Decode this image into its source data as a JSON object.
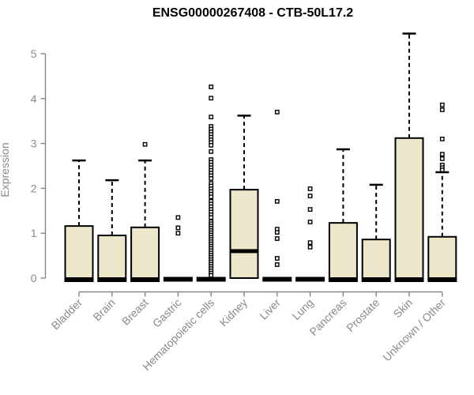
{
  "chart_data": {
    "type": "boxplot",
    "title": "ENSG00000267408 - CTB-50L17.2",
    "ylabel": "Expression",
    "xlabel": "",
    "ylim": [
      0,
      5.5
    ],
    "yticks": [
      0,
      1,
      2,
      3,
      4,
      5
    ],
    "grid": false,
    "legend": null,
    "colors": {
      "box_fill": "#ECE7CB",
      "box_stroke": "#000000",
      "median": "#000000",
      "whisker": "#000000",
      "outlier_stroke": "#000000",
      "outlier_fill": "#ffffff",
      "axis_line": "#878787",
      "tick_label": "#8a8a8a",
      "title": "#000000"
    },
    "categories": [
      "Bladder",
      "Brain",
      "Breast",
      "Gastric",
      "Hematopoietic cells",
      "Kidney",
      "Liver",
      "Lung",
      "Pancreas",
      "Prostate",
      "Skin",
      "Unknown / Other"
    ],
    "series": [
      {
        "category": "Bladder",
        "q1": 0,
        "median": 0,
        "q3": 1.16,
        "whisker_low": 0,
        "whisker_high": 2.62,
        "outliers": []
      },
      {
        "category": "Brain",
        "q1": 0,
        "median": 0,
        "q3": 0.95,
        "whisker_low": 0,
        "whisker_high": 2.18,
        "outliers": []
      },
      {
        "category": "Breast",
        "q1": 0,
        "median": 0,
        "q3": 1.13,
        "whisker_low": 0,
        "whisker_high": 2.62,
        "outliers": [
          2.98
        ]
      },
      {
        "category": "Gastric",
        "q1": 0,
        "median": 0,
        "q3": 0,
        "whisker_low": 0,
        "whisker_high": null,
        "outliers": [
          1.35,
          1.12,
          1.0
        ]
      },
      {
        "category": "Hematopoietic cells",
        "q1": 0,
        "median": 0,
        "q3": 0,
        "whisker_low": 0,
        "whisker_high": null,
        "outliers": [
          4.26,
          4.01,
          3.59,
          3.38,
          3.32,
          3.26,
          3.2,
          3.14,
          3.08,
          3.02,
          2.96,
          2.82,
          2.64,
          2.58,
          2.52,
          2.46,
          2.4,
          2.34,
          2.28,
          2.22,
          2.11,
          2.05,
          1.99,
          1.93,
          1.87,
          1.81,
          1.71,
          1.65,
          1.59,
          1.53,
          1.47,
          1.41,
          1.35,
          1.26,
          1.21,
          1.16,
          1.11,
          1.06,
          1.01,
          0.96,
          0.91,
          0.86,
          0.81,
          0.76,
          0.71,
          0.66,
          0.61,
          0.56,
          0.51,
          0.46,
          0.41,
          0.36,
          0.31,
          0.26,
          0.21,
          0.16,
          0.11,
          0.06
        ]
      },
      {
        "category": "Kidney",
        "q1": 0,
        "median": 0.6,
        "q3": 1.97,
        "whisker_low": 0,
        "whisker_high": 3.62,
        "outliers": []
      },
      {
        "category": "Liver",
        "q1": 0,
        "median": 0,
        "q3": 0,
        "whisker_low": 0,
        "whisker_high": null,
        "outliers": [
          3.7,
          1.71,
          1.09,
          1.02,
          0.88,
          0.44,
          0.3
        ]
      },
      {
        "category": "Lung",
        "q1": 0,
        "median": 0,
        "q3": 0,
        "whisker_low": 0,
        "whisker_high": null,
        "outliers": [
          1.99,
          1.83,
          1.53,
          1.25,
          0.79,
          0.69
        ]
      },
      {
        "category": "Pancreas",
        "q1": 0,
        "median": 0,
        "q3": 1.23,
        "whisker_low": 0,
        "whisker_high": 2.87,
        "outliers": []
      },
      {
        "category": "Prostate",
        "q1": 0,
        "median": 0,
        "q3": 0.86,
        "whisker_low": 0,
        "whisker_high": 2.08,
        "outliers": []
      },
      {
        "category": "Skin",
        "q1": 0,
        "median": 0,
        "q3": 3.12,
        "whisker_low": 0,
        "whisker_high": 5.45,
        "outliers": []
      },
      {
        "category": "Unknown / Other",
        "q1": 0,
        "median": 0,
        "q3": 0.92,
        "whisker_low": 0,
        "whisker_high": 2.36,
        "outliers": [
          3.86,
          3.75,
          3.1,
          2.76,
          2.66,
          2.52,
          2.46,
          2.41
        ]
      }
    ]
  }
}
